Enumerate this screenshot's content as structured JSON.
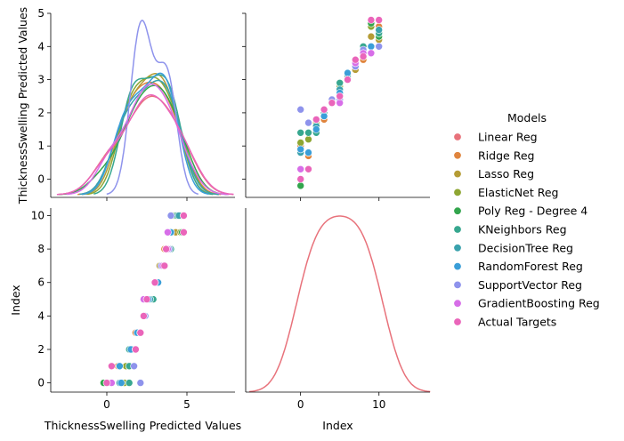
{
  "chart_data": {
    "type": "scatter",
    "kind": "pairplot",
    "variables": [
      "ThicknessSwelling Predicted Values",
      "Index"
    ],
    "hue_title": "Models",
    "legend_placement": "right",
    "grid": false,
    "axes": {
      "pred": {
        "label": "ThicknessSwelling Predicted Values",
        "range": [
          -3.5,
          8
        ],
        "ticks_x": [
          0,
          5
        ],
        "range_y": [
          -0.55,
          5
        ],
        "ticks_y": [
          0,
          1,
          2,
          3,
          4,
          5
        ]
      },
      "index": {
        "label": "Index",
        "range_x": [
          -7,
          16.5
        ],
        "ticks_x": [
          0,
          10
        ],
        "range_y": [
          -0.55,
          10.45
        ],
        "ticks_y": [
          0,
          2,
          4,
          6,
          8,
          10
        ]
      }
    },
    "index_values": [
      0,
      1,
      2,
      3,
      4,
      5,
      6,
      7,
      8,
      9,
      10
    ],
    "series": [
      {
        "name": "Linear Reg",
        "color": "#e8727b",
        "values": [
          0.0,
          0.3,
          1.6,
          2.0,
          2.3,
          2.6,
          3.1,
          3.5,
          3.7,
          4.7,
          4.8
        ]
      },
      {
        "name": "Ridge Reg",
        "color": "#e0853e",
        "values": [
          1.0,
          0.7,
          1.7,
          1.8,
          2.3,
          2.6,
          3.2,
          3.3,
          3.6,
          4.3,
          4.6
        ]
      },
      {
        "name": "Lasso Reg",
        "color": "#b59c35",
        "values": [
          1.1,
          0.8,
          1.7,
          1.9,
          2.4,
          2.8,
          3.1,
          3.3,
          3.7,
          4.3,
          4.2
        ]
      },
      {
        "name": "ElasticNet Reg",
        "color": "#8ea632",
        "values": [
          1.1,
          1.2,
          1.6,
          2.0,
          2.4,
          2.8,
          3.1,
          3.4,
          3.7,
          4.6,
          4.3
        ]
      },
      {
        "name": "Poly Reg - Degree 4",
        "color": "#33a54d",
        "values": [
          -0.2,
          1.4,
          1.4,
          2.0,
          2.4,
          2.9,
          3.1,
          3.4,
          3.8,
          4.7,
          4.3
        ]
      },
      {
        "name": "KNeighbors Reg",
        "color": "#37a78f",
        "values": [
          1.4,
          1.4,
          1.4,
          2.0,
          2.4,
          2.9,
          3.1,
          3.5,
          4.0,
          4.0,
          4.4
        ]
      },
      {
        "name": "DecisionTree Reg",
        "color": "#3aa2ad",
        "values": [
          0.8,
          0.8,
          1.6,
          1.9,
          2.4,
          2.7,
          3.2,
          3.5,
          3.8,
          4.0,
          4.5
        ]
      },
      {
        "name": "RandomForest Reg",
        "color": "#3a9ed8",
        "values": [
          0.9,
          0.8,
          1.5,
          1.9,
          2.4,
          2.6,
          3.2,
          3.5,
          3.8,
          4.0,
          4.0
        ]
      },
      {
        "name": "SupportVector Reg",
        "color": "#8e93ec",
        "values": [
          2.1,
          1.7,
          1.8,
          2.1,
          2.4,
          2.4,
          3.0,
          3.4,
          3.9,
          3.8,
          4.0
        ]
      },
      {
        "name": "GradientBoosting Reg",
        "color": "#d76ee8",
        "values": [
          0.3,
          0.3,
          1.8,
          2.1,
          2.3,
          2.3,
          3.0,
          3.5,
          3.8,
          3.8,
          4.8
        ]
      },
      {
        "name": "Actual Targets",
        "color": "#ea65ba",
        "values": [
          0.0,
          0.3,
          1.8,
          2.1,
          2.3,
          2.5,
          3.0,
          3.6,
          3.7,
          4.8,
          4.8
        ]
      }
    ]
  }
}
